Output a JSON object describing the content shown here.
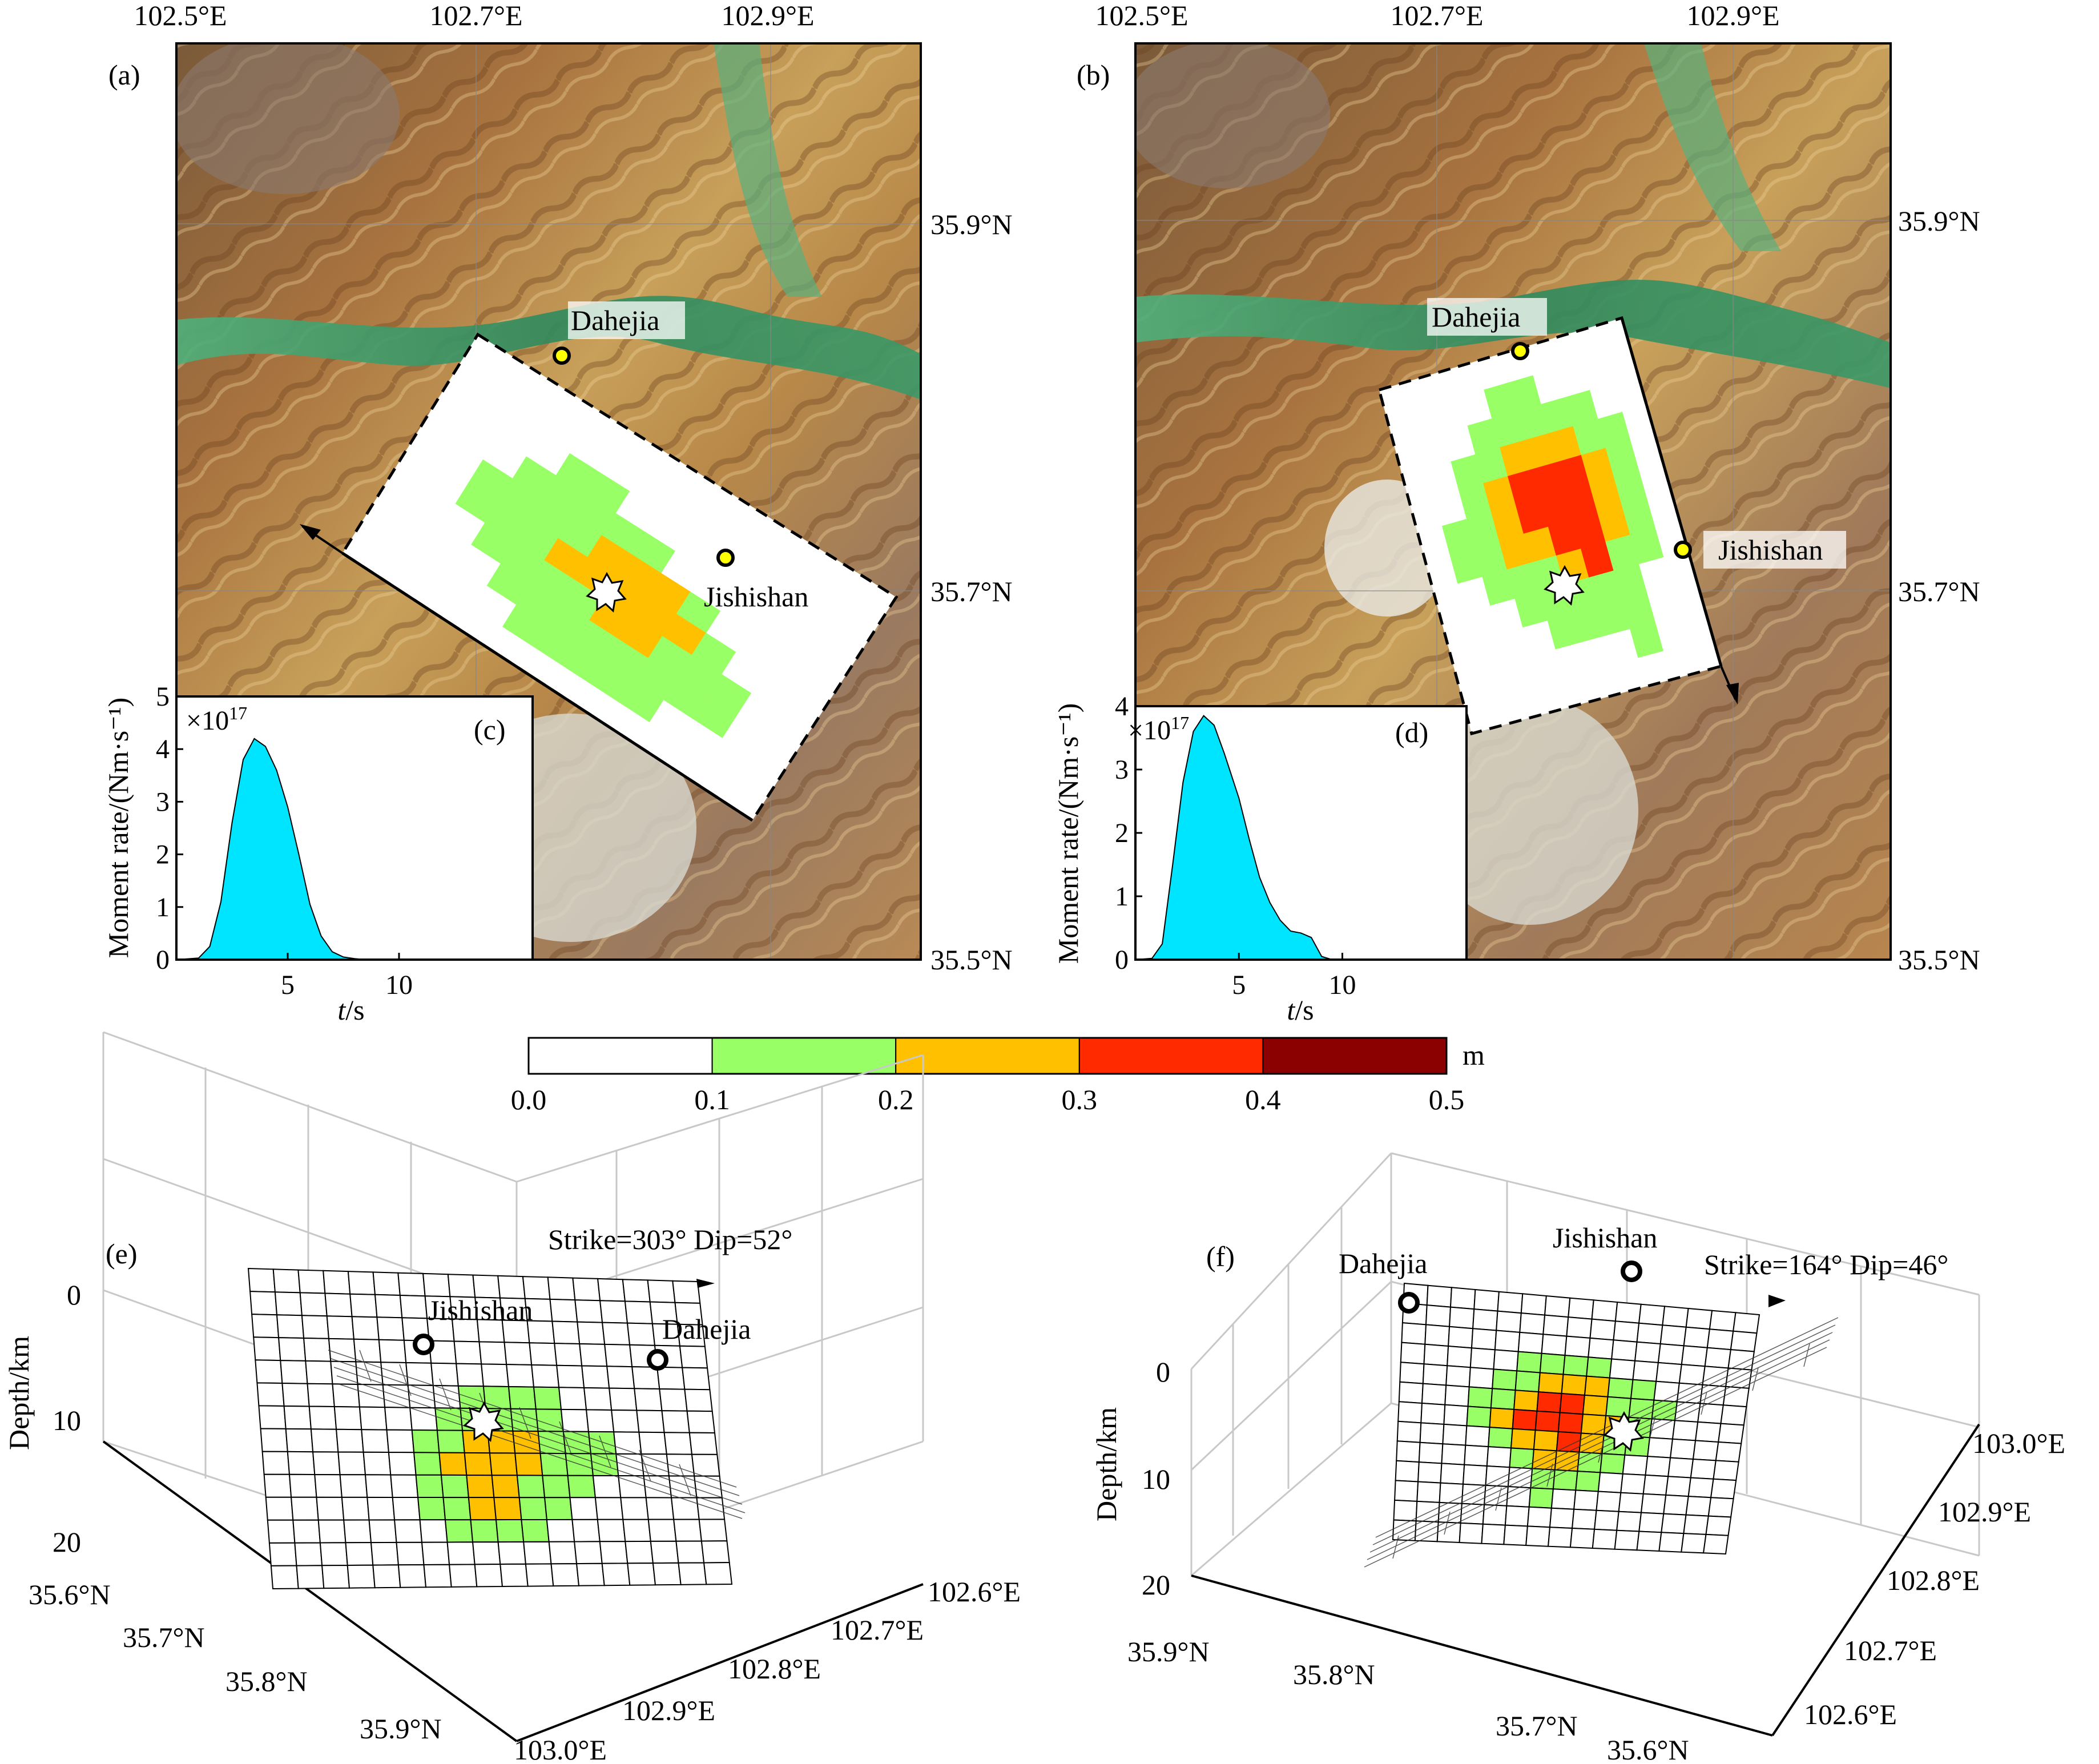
{
  "panels": {
    "a": {
      "letter": "(a)"
    },
    "b": {
      "letter": "(b)"
    },
    "c": {
      "letter": "(c)"
    },
    "d": {
      "letter": "(d)"
    },
    "e": {
      "letter": "(e)",
      "caption": "Strike=303° Dip=52°"
    },
    "f": {
      "letter": "(f)",
      "caption": "Strike=164° Dip=46°"
    }
  },
  "map_axes": {
    "lon_ticks": [
      "102.5°E",
      "102.7°E",
      "102.9°E"
    ],
    "lat_ticks": [
      "35.9°N",
      "35.7°N",
      "35.5°N"
    ]
  },
  "places": {
    "dahejia": "Dahejia",
    "jishishan": "Jishishan"
  },
  "colorbar": {
    "ticks": [
      "0.0",
      "0.1",
      "0.2",
      "0.3",
      "0.4",
      "0.5"
    ],
    "unit": "m",
    "bins": [
      {
        "range": [
          0.0,
          0.1
        ],
        "color": "#ffffff"
      },
      {
        "range": [
          0.1,
          0.2
        ],
        "color": "#99ff66"
      },
      {
        "range": [
          0.2,
          0.3
        ],
        "color": "#ffc000"
      },
      {
        "range": [
          0.3,
          0.4
        ],
        "color": "#ff2a00"
      },
      {
        "range": [
          0.4,
          0.5
        ],
        "color": "#8b0000"
      }
    ]
  },
  "stf_axes": {
    "ylabel": "Moment rate/(Nm·s⁻¹)",
    "xlabel_italic": "t",
    "xlabel_unit": "/s",
    "multiplier_base": "×10",
    "multiplier_exp": "17"
  },
  "chart_data": [
    {
      "id": "c",
      "type": "area",
      "fill": "#00e5ff",
      "x": [
        0,
        1,
        1.5,
        2,
        2.5,
        3,
        3.5,
        4,
        4.5,
        5,
        5.5,
        6,
        6.5,
        7,
        7.5,
        8,
        8.5,
        16
      ],
      "y": [
        0,
        0.03,
        0.25,
        1.1,
        2.6,
        3.8,
        4.2,
        4.05,
        3.6,
        2.9,
        2.0,
        1.05,
        0.45,
        0.15,
        0.05,
        0.02,
        0,
        0
      ],
      "xlim": [
        0,
        16
      ],
      "ylim": [
        0,
        5
      ],
      "xticks": [
        "5",
        "10"
      ],
      "yticks": [
        "0",
        "1",
        "2",
        "3",
        "4",
        "5"
      ]
    },
    {
      "id": "d",
      "type": "area",
      "fill": "#00e5ff",
      "x": [
        0,
        0.8,
        1.3,
        1.8,
        2.3,
        2.8,
        3.3,
        3.8,
        4.3,
        5,
        5.5,
        6,
        6.5,
        7,
        7.5,
        8,
        8.5,
        9,
        9.5,
        16
      ],
      "y": [
        0,
        0.02,
        0.25,
        1.5,
        2.8,
        3.6,
        3.85,
        3.7,
        3.25,
        2.55,
        1.9,
        1.3,
        0.9,
        0.62,
        0.45,
        0.42,
        0.35,
        0.05,
        0,
        0
      ],
      "xlim": [
        0,
        16
      ],
      "ylim": [
        0,
        4
      ],
      "xticks": [
        "5",
        "10"
      ],
      "yticks": [
        "0",
        "1",
        "2",
        "3",
        "4"
      ]
    }
  ],
  "axes3d": {
    "depth_label": "Depth/km",
    "depth_ticks": [
      "0",
      "10",
      "20"
    ],
    "e": {
      "lat_ticks": [
        "35.6°N",
        "35.7°N",
        "35.8°N",
        "35.9°N"
      ],
      "lon_ticks": [
        "103.0°E",
        "102.9°E",
        "102.8°E",
        "102.7°E",
        "102.6°E"
      ]
    },
    "f": {
      "lat_ticks": [
        "35.9°N",
        "35.8°N",
        "35.7°N",
        "35.6°N"
      ],
      "lon_ticks": [
        "102.6°E",
        "102.7°E",
        "102.8°E",
        "102.9°E",
        "103.0°E"
      ]
    }
  },
  "slip_model_a": {
    "cols": 14,
    "rows": 10,
    "cells": [
      "..............",
      "..............",
      "....gg........",
      "...ggggg......",
      "..ggggyyyg....",
      "..gggyyyyyg...",
      "...ggggyyggg..",
      "....gggggggg..",
      ".....ggggg....",
      ".............."
    ]
  },
  "slip_model_b": {
    "cols": 10,
    "rows": 12,
    "cells": [
      "..........",
      "....gg....",
      "...ggggg..",
      "..ggyyygg.",
      "..gyrrryg.",
      ".ggyrrryg.",
      ".ggyyrryg.",
      "..gggyrgg.",
      "...ggggg..",
      "....gggg..",
      ".......g..",
      ".........."
    ]
  },
  "slip_model_e": {
    "cols": 18,
    "rows": 14,
    "cells": [
      "..................",
      "..................",
      "..................",
      "..................",
      "..................",
      "........gggg......",
      ".......ggggg......",
      "......ggyyyggg....",
      "......gyyyyggg....",
      "......ggyyggg.....",
      "......ggyygg......",
      ".......gggg.......",
      "..................",
      ".................."
    ]
  },
  "slip_model_f": {
    "cols": 15,
    "rows": 13,
    "cells": [
      "...............",
      "...............",
      "...............",
      ".....gggg......",
      "....ggyyygg....",
      "...ggyrryggg...",
      "...gyrrryyg....",
      "....gyyrygg....",
      ".....gyygg.....",
      "......ggg......",
      "......g........",
      "...............",
      "..............."
    ]
  }
}
